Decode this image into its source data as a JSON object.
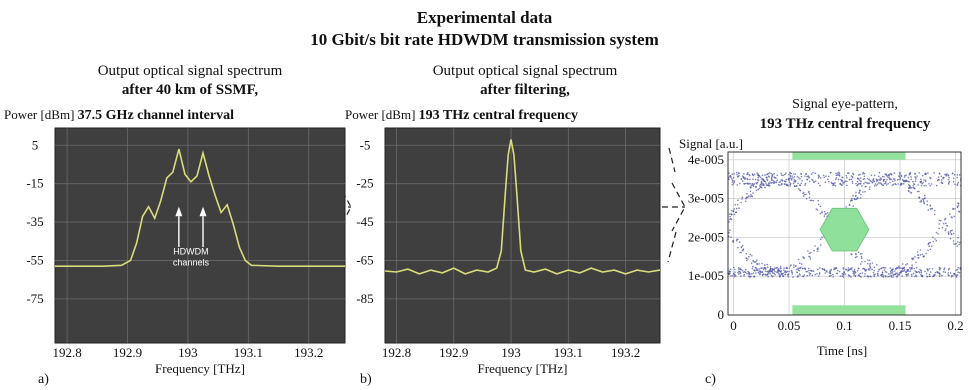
{
  "header": {
    "title": "Experimental data",
    "subtitle": "10 Gbit/s bit rate HDWDM transmission system"
  },
  "chart_data": [
    {
      "type": "line",
      "panel_letter": "a)",
      "caption_line1": "Output optical signal spectrum",
      "caption_line2": "after 40 km of SSMF,",
      "ylabel": "Power [dBm]",
      "ylabel_emph": "37.5 GHz channel interval",
      "xlabel": "Frequency [THz]",
      "x_ticks": [
        "192.8",
        "192.9",
        "193",
        "193.1",
        "193.2"
      ],
      "y_ticks": [
        "5",
        "-15",
        "-35",
        "-55",
        "-75"
      ],
      "xlim": [
        192.78,
        193.26
      ],
      "ylim": [
        -98,
        14
      ],
      "annotation": "HDWDM channels",
      "annotation_lines": [
        "HDWDM",
        "channels"
      ],
      "series": [
        {
          "color": "#d9dc7a",
          "points": [
            [
              192.78,
              -58
            ],
            [
              192.86,
              -58
            ],
            [
              192.89,
              -57.5
            ],
            [
              192.905,
              -55
            ],
            [
              192.915,
              -46
            ],
            [
              192.925,
              -32
            ],
            [
              192.935,
              -27
            ],
            [
              192.945,
              -33
            ],
            [
              192.955,
              -24
            ],
            [
              192.965,
              -12
            ],
            [
              192.975,
              -9
            ],
            [
              192.985,
              3
            ],
            [
              192.995,
              -10
            ],
            [
              193.005,
              -14
            ],
            [
              193.015,
              -11
            ],
            [
              193.025,
              1
            ],
            [
              193.035,
              -11
            ],
            [
              193.045,
              -21
            ],
            [
              193.055,
              -30
            ],
            [
              193.065,
              -26
            ],
            [
              193.075,
              -36
            ],
            [
              193.085,
              -48
            ],
            [
              193.095,
              -55
            ],
            [
              193.105,
              -57.5
            ],
            [
              193.15,
              -58
            ],
            [
              193.26,
              -58
            ]
          ]
        }
      ]
    },
    {
      "type": "line",
      "panel_letter": "b)",
      "caption_line1": "Output optical signal spectrum",
      "caption_line2": "after filtering,",
      "ylabel": "Power [dBm]",
      "ylabel_emph": "193 THz central frequency",
      "xlabel": "Frequency [THz]",
      "x_ticks": [
        "192.8",
        "192.9",
        "193",
        "193.1",
        "193.2"
      ],
      "y_ticks": [
        "-5",
        "-25",
        "-45",
        "-65",
        "-85"
      ],
      "xlim": [
        192.78,
        193.26
      ],
      "ylim": [
        -108,
        4
      ],
      "series": [
        {
          "color": "#d9dc7a",
          "points": [
            [
              192.78,
              -70.5
            ],
            [
              192.8,
              -71
            ],
            [
              192.82,
              -69.5
            ],
            [
              192.84,
              -72
            ],
            [
              192.86,
              -70
            ],
            [
              192.88,
              -71.5
            ],
            [
              192.9,
              -69
            ],
            [
              192.92,
              -72
            ],
            [
              192.94,
              -70
            ],
            [
              192.96,
              -71
            ],
            [
              192.975,
              -69
            ],
            [
              192.983,
              -60
            ],
            [
              192.99,
              -30
            ],
            [
              192.995,
              -10
            ],
            [
              193.0,
              -2
            ],
            [
              193.005,
              -10
            ],
            [
              193.01,
              -30
            ],
            [
              193.017,
              -60
            ],
            [
              193.025,
              -70
            ],
            [
              193.04,
              -71
            ],
            [
              193.06,
              -69.5
            ],
            [
              193.08,
              -72
            ],
            [
              193.1,
              -70
            ],
            [
              193.12,
              -71.5
            ],
            [
              193.14,
              -69
            ],
            [
              193.16,
              -71
            ],
            [
              193.18,
              -70
            ],
            [
              193.2,
              -72
            ],
            [
              193.22,
              -70
            ],
            [
              193.24,
              -71
            ],
            [
              193.26,
              -70
            ]
          ]
        }
      ]
    },
    {
      "type": "scatter",
      "panel_letter": "c)",
      "caption_line1": "Signal eye-pattern,",
      "caption_line2": "193 THz central frequency",
      "ylabel": "Signal [a.u.]",
      "xlabel": "Time [ns]",
      "x_ticks": [
        "0",
        "0.05",
        "0.1",
        "0.15",
        "0.2"
      ],
      "y_ticks": [
        "4e-005",
        "3e-005",
        "2e-005",
        "1e-005",
        "0"
      ],
      "xlim": [
        -0.005,
        0.205
      ],
      "ylim": [
        0,
        4.2e-05
      ],
      "levels": {
        "high": 3.5e-05,
        "low": 1.1e-05
      },
      "dot_color": "#4d55a8",
      "mask_color": "#8fe09a",
      "mask": {
        "top_bar": {
          "x": [
            0.053,
            0.155
          ],
          "y": [
            4e-05,
            4.2e-05
          ]
        },
        "bottom_bar": {
          "x": [
            0.053,
            0.155
          ],
          "y": [
            0.0,
            2.5e-06
          ]
        },
        "eye": {
          "x": [
            0.078,
            0.122
          ],
          "y": [
            1.65e-05,
            2.75e-05
          ]
        }
      }
    }
  ]
}
